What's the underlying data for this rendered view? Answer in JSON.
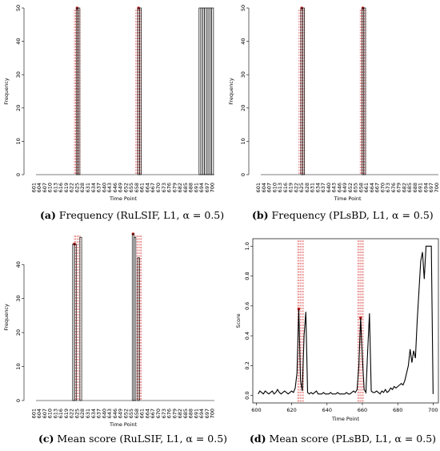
{
  "chart_data": [
    {
      "type": "bar",
      "panel": "a",
      "caption_letter": "(a)",
      "caption_text": " Frequency (RuLSIF, L1, α = 0.5)",
      "xlabel": "Time Point",
      "ylabel": "Frequency",
      "ylim": [
        0,
        50
      ],
      "yticks": [
        0,
        10,
        20,
        30,
        40,
        50
      ],
      "xticks": [
        601,
        604,
        607,
        610,
        613,
        616,
        619,
        622,
        625,
        628,
        631,
        634,
        637,
        640,
        643,
        646,
        649,
        652,
        655,
        658,
        661,
        664,
        667,
        670,
        673,
        676,
        679,
        682,
        685,
        688,
        691,
        694,
        697,
        700
      ],
      "bars": [
        {
          "x": 625,
          "value": 50
        },
        {
          "x": 626,
          "value": 50
        },
        {
          "x": 659,
          "value": 50
        },
        {
          "x": 660,
          "value": 50
        },
        {
          "x": 693,
          "value": 50
        },
        {
          "x": 694,
          "value": 50
        },
        {
          "x": 695,
          "value": 50
        },
        {
          "x": 696,
          "value": 50
        },
        {
          "x": 697,
          "value": 50
        },
        {
          "x": 698,
          "value": 50
        },
        {
          "x": 699,
          "value": 50
        },
        {
          "x": 700,
          "value": 50
        }
      ],
      "red_lines": [
        623.5,
        624.2,
        625,
        625.8,
        626.6,
        657.5,
        658.2,
        659,
        659.8,
        660.5
      ],
      "red_points": [
        {
          "x": 625,
          "y": 50
        },
        {
          "x": 659,
          "y": 50
        }
      ]
    },
    {
      "type": "bar",
      "panel": "b",
      "caption_letter": "(b)",
      "caption_text": " Frequency (PLsBD, L1, α = 0.5)",
      "xlabel": "Time Point",
      "ylabel": "Frequency",
      "ylim": [
        0,
        50
      ],
      "yticks": [
        0,
        10,
        20,
        30,
        40,
        50
      ],
      "xticks": [
        601,
        604,
        607,
        610,
        613,
        616,
        619,
        622,
        625,
        628,
        631,
        634,
        637,
        640,
        643,
        646,
        649,
        652,
        655,
        658,
        661,
        664,
        667,
        670,
        673,
        676,
        679,
        682,
        685,
        688,
        691,
        694,
        697,
        700
      ],
      "bars": [
        {
          "x": 625,
          "value": 50
        },
        {
          "x": 626,
          "value": 50
        },
        {
          "x": 659,
          "value": 50
        },
        {
          "x": 660,
          "value": 50
        }
      ],
      "red_lines": [
        623.5,
        624.2,
        625,
        625.8,
        626.6,
        657.5,
        658.2,
        659,
        659.8,
        660.5
      ],
      "red_points": [
        {
          "x": 625,
          "y": 50
        },
        {
          "x": 659,
          "y": 50
        }
      ]
    },
    {
      "type": "bar",
      "panel": "c",
      "caption_letter": "(c)",
      "caption_text": " Mean score (RuLSIF, L1, α = 0.5)",
      "xlabel": "Time Point",
      "ylabel": "Frequency",
      "ylim": [
        0,
        49
      ],
      "yticks": [
        0,
        10,
        20,
        30,
        40
      ],
      "xticks": [
        601,
        604,
        607,
        610,
        613,
        616,
        619,
        622,
        625,
        628,
        631,
        634,
        637,
        640,
        643,
        646,
        649,
        652,
        655,
        658,
        661,
        664,
        667,
        670,
        673,
        676,
        679,
        682,
        685,
        688,
        691,
        694,
        697,
        700
      ],
      "bars": [
        {
          "x": 623,
          "value": 46
        },
        {
          "x": 624,
          "value": 46
        },
        {
          "x": 627,
          "value": 48
        },
        {
          "x": 656,
          "value": 49
        },
        {
          "x": 657,
          "value": 48
        },
        {
          "x": 659,
          "value": 42
        }
      ],
      "red_lines": [
        623.5,
        624.2,
        625,
        625.8,
        626.6,
        657.5,
        658.2,
        659,
        659.8,
        660.5
      ],
      "red_points": [
        {
          "x": 623.5,
          "y": 46
        },
        {
          "x": 656,
          "y": 49
        }
      ]
    },
    {
      "type": "line",
      "panel": "d",
      "caption_letter": "(d)",
      "caption_text": " Mean score (PLsBD, L1, α = 0.5)",
      "xlabel": "Time Point",
      "ylabel": "Score",
      "xlim": [
        598,
        703
      ],
      "ylim": [
        -0.05,
        1.05
      ],
      "xticks": [
        600,
        620,
        640,
        660,
        680,
        700
      ],
      "yticks": [
        0.0,
        0.2,
        0.4,
        0.6,
        0.8,
        1.0
      ],
      "ytick_labels": [
        "0.0",
        "0.2",
        "0.4",
        "0.6",
        "0.8",
        "1.0"
      ],
      "x": [
        601,
        602,
        603,
        604,
        605,
        606,
        607,
        608,
        609,
        610,
        611,
        612,
        613,
        614,
        615,
        616,
        617,
        618,
        619,
        620,
        621,
        622,
        623,
        624,
        625,
        626,
        627,
        628,
        629,
        630,
        631,
        632,
        633,
        634,
        635,
        636,
        637,
        638,
        639,
        640,
        641,
        642,
        643,
        644,
        645,
        646,
        647,
        648,
        649,
        650,
        651,
        652,
        653,
        654,
        655,
        656,
        657,
        658,
        659,
        660,
        661,
        662,
        663,
        664,
        665,
        666,
        667,
        668,
        669,
        670,
        671,
        672,
        673,
        674,
        675,
        676,
        677,
        678,
        679,
        680,
        681,
        682,
        683,
        684,
        685,
        686,
        687,
        688,
        689,
        690,
        691,
        692,
        693,
        694,
        695,
        696,
        697,
        698,
        699,
        700
      ],
      "y": [
        0.01,
        0.03,
        0.02,
        0.01,
        0.03,
        0.02,
        0.01,
        0.02,
        0.03,
        0.01,
        0.02,
        0.04,
        0.02,
        0.01,
        0.02,
        0.03,
        0.02,
        0.01,
        0.02,
        0.03,
        0.02,
        0.05,
        0.15,
        0.58,
        0.1,
        0.03,
        0.4,
        0.56,
        0.02,
        0.01,
        0.02,
        0.01,
        0.02,
        0.03,
        0.01,
        0.01,
        0.01,
        0.02,
        0.01,
        0.01,
        0.01,
        0.02,
        0.01,
        0.01,
        0.01,
        0.02,
        0.01,
        0.01,
        0.01,
        0.01,
        0.02,
        0.01,
        0.01,
        0.02,
        0.03,
        0.02,
        0.04,
        0.2,
        0.52,
        0.25,
        0.04,
        0.02,
        0.3,
        0.55,
        0.03,
        0.02,
        0.02,
        0.03,
        0.02,
        0.01,
        0.03,
        0.02,
        0.04,
        0.02,
        0.03,
        0.05,
        0.04,
        0.06,
        0.05,
        0.06,
        0.07,
        0.08,
        0.07,
        0.1,
        0.15,
        0.2,
        0.31,
        0.22,
        0.3,
        0.25,
        0.5,
        0.7,
        0.9,
        0.96,
        0.78,
        1.0,
        1.0,
        1.0,
        1.0,
        0.01
      ],
      "red_lines": [
        623.5,
        624.2,
        625,
        625.8,
        626.6,
        657.5,
        658.2,
        659,
        659.8,
        660.5
      ],
      "red_points": [
        {
          "x": 624,
          "y": 0.58
        },
        {
          "x": 659,
          "y": 0.52
        }
      ]
    }
  ]
}
